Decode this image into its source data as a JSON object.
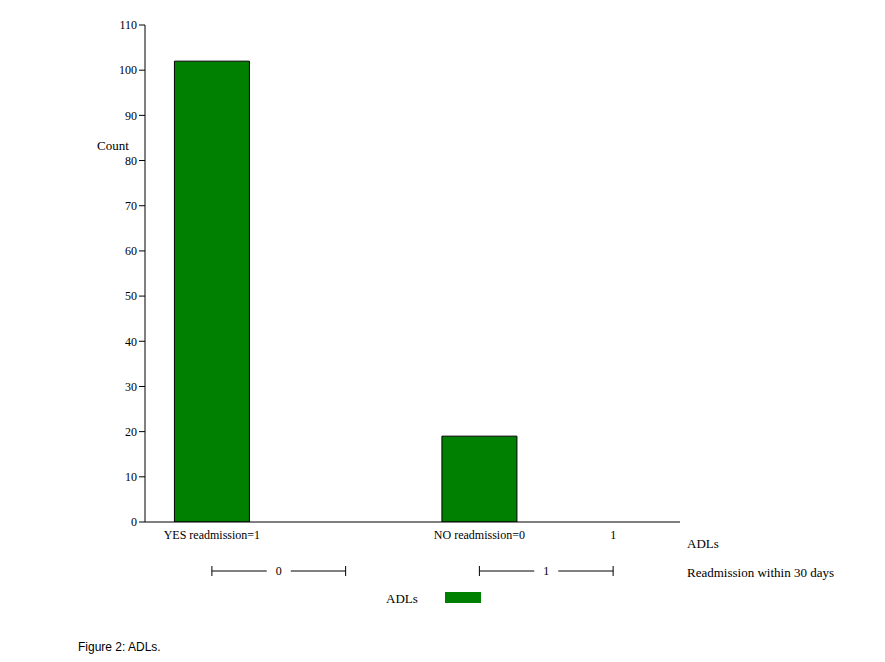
{
  "chart_data": {
    "type": "bar",
    "title": "Figure 2: ADLs.",
    "y_label": "Count",
    "x_label": "ADLs",
    "group_label": "Readmission within 30 days",
    "groups": [
      "0",
      "1"
    ],
    "categories": [
      "YES readmission=1",
      null,
      "NO readmission=0",
      "1"
    ],
    "series": [
      {
        "name": "ADLs",
        "color": "#008000",
        "values": [
          102,
          null,
          19,
          null
        ]
      }
    ],
    "ylim": [
      0,
      110
    ],
    "yticks": [
      0,
      10,
      20,
      30,
      40,
      50,
      60,
      70,
      80,
      90,
      100,
      110
    ],
    "grid": false,
    "legend": "bottom"
  }
}
